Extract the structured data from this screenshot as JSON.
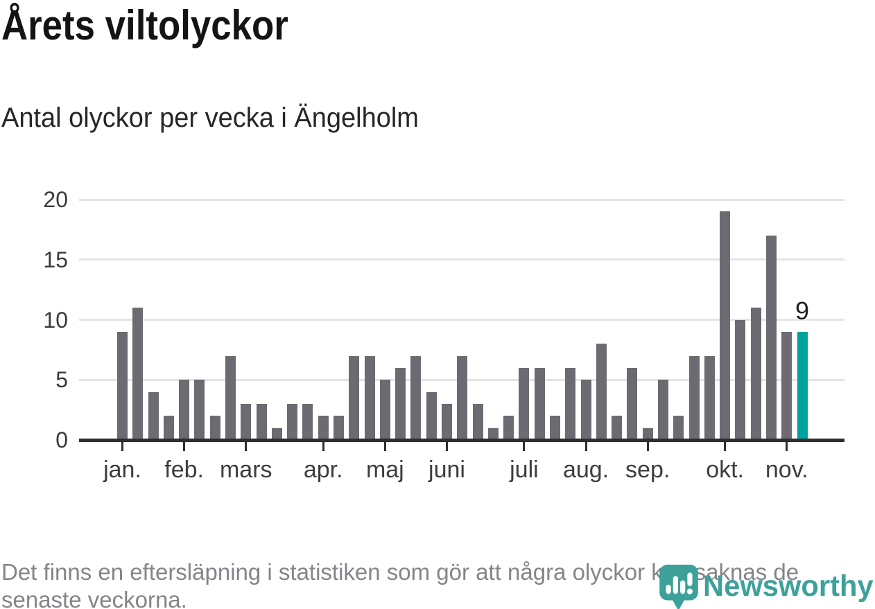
{
  "title": "Årets viltolyckor",
  "subtitle": "Antal olyckor per vecka i Ängelholm",
  "footnote": {
    "lines": [
      "Det finns en eftersläpning i statistiken som gör att några olyckor kan saknas de",
      "senaste veckorna."
    ]
  },
  "logo": {
    "wordmark": "Newsworthy",
    "icon": "newsworthy-pin-barchart-icon",
    "color": "#3da19a"
  },
  "colors": {
    "bar": "#6d6a71",
    "highlight": "#00a39b",
    "gridline": "#e4e4e4",
    "axis": "#2e2e2e",
    "title_text": "#141414",
    "subtitle_text": "#262626",
    "tick_text": "#3d3d3d",
    "footnote_text": "#84848a"
  },
  "chart_data": {
    "type": "bar",
    "title": "Årets viltolyckor",
    "subtitle": "Antal olyckor per vecka i Ängelholm",
    "xlabel": "",
    "ylabel": "",
    "ylim": [
      0,
      20
    ],
    "yticks": [
      0,
      5,
      10,
      15,
      20
    ],
    "grid": true,
    "legend": "none",
    "categories_note": "one bar per week, January through mid-November",
    "values": [
      9,
      11,
      4,
      2,
      5,
      5,
      2,
      7,
      3,
      3,
      1,
      3,
      3,
      2,
      2,
      7,
      7,
      5,
      6,
      7,
      4,
      3,
      7,
      3,
      1,
      2,
      6,
      6,
      2,
      6,
      5,
      8,
      2,
      6,
      1,
      5,
      2,
      7,
      7,
      19,
      10,
      11,
      17,
      9,
      9
    ],
    "month_ticks": [
      {
        "label": "jan.",
        "week_index": 0
      },
      {
        "label": "feb.",
        "week_index": 4
      },
      {
        "label": "mars",
        "week_index": 8
      },
      {
        "label": "apr.",
        "week_index": 13
      },
      {
        "label": "maj",
        "week_index": 17
      },
      {
        "label": "juni",
        "week_index": 21
      },
      {
        "label": "juli",
        "week_index": 26
      },
      {
        "label": "aug.",
        "week_index": 30
      },
      {
        "label": "sep.",
        "week_index": 34
      },
      {
        "label": "okt.",
        "week_index": 39
      },
      {
        "label": "nov.",
        "week_index": 43
      }
    ],
    "highlight_last_bar": true,
    "last_bar_label": "9"
  }
}
